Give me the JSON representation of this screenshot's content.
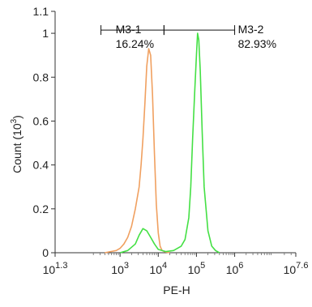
{
  "chart_data": {
    "type": "line",
    "xlabel": "PE-H",
    "ylabel": "Count (10",
    "ylabel_exp": "3",
    "ylabel_close": ")",
    "xscale": "log",
    "xlim": [
      1.3,
      7.6
    ],
    "ylim": [
      0,
      1.1
    ],
    "x_ticks": [
      {
        "base": "10",
        "exp": "1.3",
        "pos": 1.3
      },
      {
        "base": "10",
        "exp": "3",
        "pos": 3
      },
      {
        "base": "10",
        "exp": "4",
        "pos": 4
      },
      {
        "base": "10",
        "exp": "5",
        "pos": 5
      },
      {
        "base": "10",
        "exp": "6",
        "pos": 6
      },
      {
        "base": "10",
        "exp": "7.6",
        "pos": 7.6
      }
    ],
    "y_ticks": [
      "0",
      "0.2",
      "0.4",
      "0.6",
      "0.8",
      "1",
      "1.1"
    ],
    "y_tick_values": [
      0,
      0.2,
      0.4,
      0.6,
      0.8,
      1.0,
      1.1
    ],
    "series": [
      {
        "color": "#f0a060",
        "log_x": [
          2.6,
          2.75,
          2.9,
          3.0,
          3.1,
          3.2,
          3.3,
          3.4,
          3.5,
          3.55,
          3.6,
          3.65,
          3.7,
          3.75,
          3.8,
          3.85,
          3.9,
          3.95,
          4.0,
          4.05,
          4.1,
          4.2,
          4.3
        ],
        "y": [
          0,
          0.005,
          0.01,
          0.02,
          0.04,
          0.07,
          0.12,
          0.2,
          0.3,
          0.4,
          0.52,
          0.68,
          0.85,
          0.93,
          0.9,
          0.72,
          0.45,
          0.22,
          0.09,
          0.03,
          0.01,
          0.003,
          0
        ]
      },
      {
        "color": "#44e044",
        "log_x": [
          3.0,
          3.2,
          3.4,
          3.5,
          3.6,
          3.7,
          3.8,
          3.9,
          4.0,
          4.2,
          4.4,
          4.6,
          4.7,
          4.8,
          4.85,
          4.9,
          4.95,
          5.0,
          5.03,
          5.06,
          5.1,
          5.15,
          5.2,
          5.3,
          5.4,
          5.5,
          5.6
        ],
        "y": [
          0,
          0.01,
          0.04,
          0.08,
          0.11,
          0.1,
          0.07,
          0.04,
          0.015,
          0.005,
          0.01,
          0.03,
          0.06,
          0.16,
          0.3,
          0.52,
          0.72,
          0.9,
          1.0,
          0.97,
          0.83,
          0.55,
          0.3,
          0.1,
          0.03,
          0.01,
          0
        ]
      }
    ],
    "gates": [
      {
        "name": "M3-1",
        "pct": "16.24%",
        "log_x_start": 2.5,
        "log_x_end": 4.15,
        "y": 1.0
      },
      {
        "name": "M3-2",
        "pct": "82.93%",
        "log_x_start": 4.15,
        "log_x_end": 6.0,
        "y": 1.0
      }
    ]
  }
}
